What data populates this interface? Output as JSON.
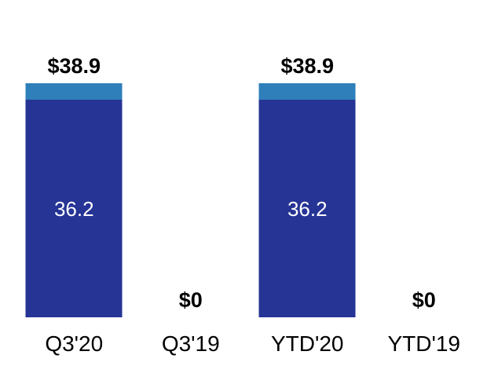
{
  "chart_data": {
    "type": "bar",
    "stacked": true,
    "categories": [
      "Q3'20",
      "Q3'19",
      "YTD'20",
      "YTD'19"
    ],
    "series": [
      {
        "name": "base-segment",
        "color": "#263496",
        "values": [
          36.2,
          0,
          36.2,
          0
        ]
      },
      {
        "name": "top-segment",
        "color": "#2e7fba",
        "values": [
          2.7,
          0,
          2.7,
          0
        ]
      }
    ],
    "totals": [
      38.9,
      0,
      38.9,
      0
    ],
    "total_labels": [
      "$38.9",
      "$0",
      "$38.9",
      "$0"
    ],
    "segment_labels": [
      "36.2",
      "",
      "36.2",
      ""
    ],
    "title": "",
    "xlabel": "",
    "ylabel": "",
    "ylim": [
      0,
      38.9
    ],
    "grid": false,
    "legend": false,
    "axes_visible": false,
    "background": "#ffffff",
    "label_color": "#000000",
    "segment_label_color": "#ffffff"
  }
}
